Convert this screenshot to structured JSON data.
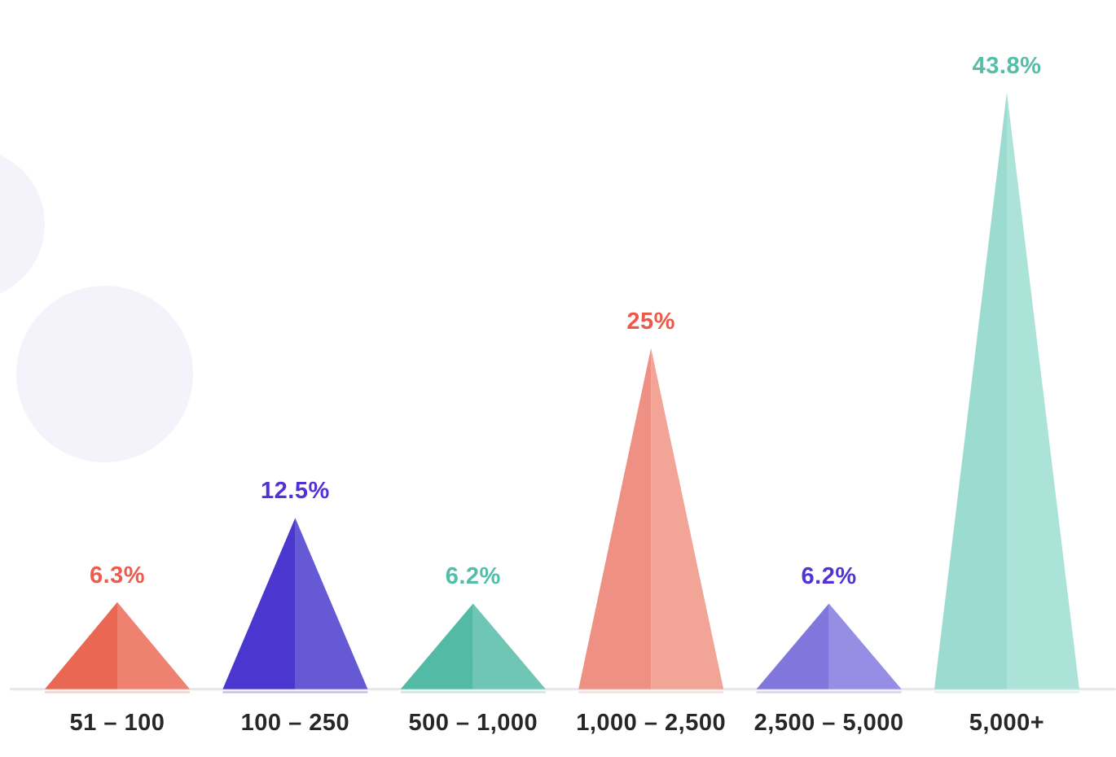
{
  "page": {
    "background": "#ffffff"
  },
  "decorations": {
    "circle_color": "#f4f3fb"
  },
  "baseline": {
    "color": "#e8e8ec"
  },
  "chart_data": {
    "type": "bar",
    "style": "triangle-peaks",
    "title": "",
    "xlabel": "",
    "ylabel": "",
    "grid": false,
    "legend": false,
    "ylim": [
      0,
      50
    ],
    "categories": [
      "51 – 100",
      "100 – 250",
      "500 – 1,000",
      "1,000 – 2,500",
      "2,500 – 5,000",
      "5,000+"
    ],
    "values": [
      6.3,
      12.5,
      6.2,
      25,
      6.2,
      43.8
    ],
    "value_labels": [
      "6.3%",
      "12.5%",
      "6.2%",
      "25%",
      "6.2%",
      "43.8%"
    ],
    "series_colors": [
      {
        "left": "#e96753",
        "right": "#ef8171",
        "label": "#ee5a4d"
      },
      {
        "left": "#4b36cf",
        "right": "#6659d6",
        "label": "#5132d6"
      },
      {
        "left": "#52baa5",
        "right": "#6fc6b4",
        "label": "#54bda7"
      },
      {
        "left": "#ee9184",
        "right": "#f2a497",
        "label": "#ec584a"
      },
      {
        "left": "#8176dc",
        "right": "#968de4",
        "label": "#5132d6"
      },
      {
        "left": "#9cdcd0",
        "right": "#ace3d8",
        "label": "#55bda8"
      }
    ]
  }
}
